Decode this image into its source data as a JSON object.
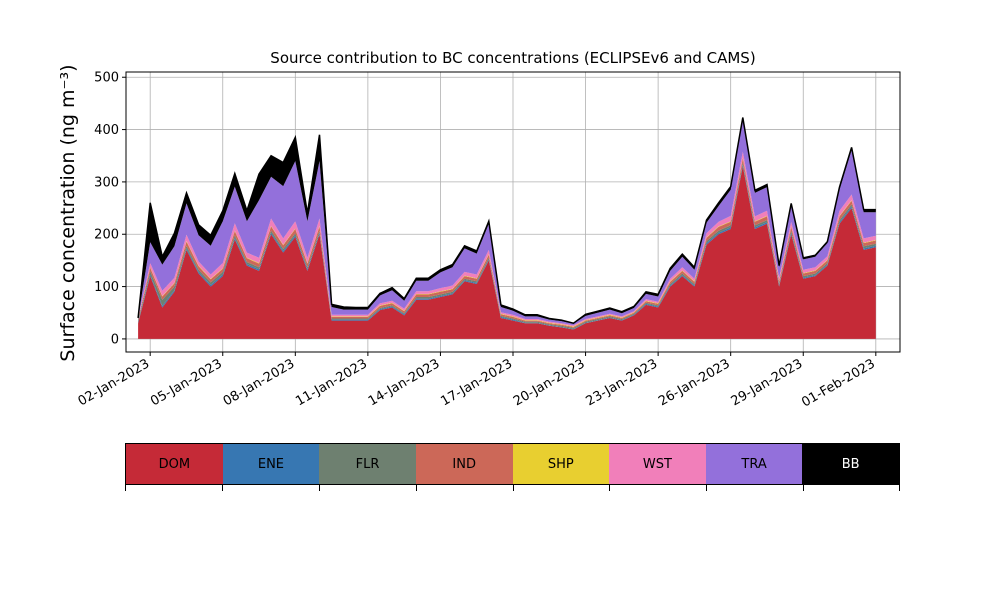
{
  "chart_data": {
    "type": "area",
    "stacked": true,
    "title": "Source contribution to BC concentrations (ECLIPSEv6 and CAMS)",
    "ylabel": "Surface concentration (ng m⁻³)",
    "xlabel": "",
    "ylim": [
      -25,
      510
    ],
    "yticks": [
      0,
      100,
      200,
      300,
      400,
      500
    ],
    "xlim": [
      "2023-01-01",
      "2023-02-02"
    ],
    "xticks": [
      "02-Jan-2023",
      "05-Jan-2023",
      "08-Jan-2023",
      "11-Jan-2023",
      "14-Jan-2023",
      "17-Jan-2023",
      "20-Jan-2023",
      "23-Jan-2023",
      "26-Jan-2023",
      "29-Jan-2023",
      "01-Feb-2023"
    ],
    "grid": true,
    "colors": {
      "DOM": "#c52a37",
      "ENE": "#3777b2",
      "FLR": "#6e8070",
      "IND": "#cc6858",
      "SHP": "#e8cf30",
      "WST": "#f17fba",
      "TRA": "#9370db",
      "BB": "#000000"
    },
    "x": [
      "2023-01-01T12",
      "2023-01-02T00",
      "2023-01-02T12",
      "2023-01-03T00",
      "2023-01-03T12",
      "2023-01-04T00",
      "2023-01-04T12",
      "2023-01-05T00",
      "2023-01-05T12",
      "2023-01-06T00",
      "2023-01-06T12",
      "2023-01-07T00",
      "2023-01-07T12",
      "2023-01-08T00",
      "2023-01-08T12",
      "2023-01-09T00",
      "2023-01-09T12",
      "2023-01-10T00",
      "2023-01-10T12",
      "2023-01-11T00",
      "2023-01-11T12",
      "2023-01-12T00",
      "2023-01-12T12",
      "2023-01-13T00",
      "2023-01-13T12",
      "2023-01-14T00",
      "2023-01-14T12",
      "2023-01-15T00",
      "2023-01-15T12",
      "2023-01-16T00",
      "2023-01-16T12",
      "2023-01-17T00",
      "2023-01-17T12",
      "2023-01-18T00",
      "2023-01-18T12",
      "2023-01-19T00",
      "2023-01-19T12",
      "2023-01-20T00",
      "2023-01-20T12",
      "2023-01-21T00",
      "2023-01-21T12",
      "2023-01-22T00",
      "2023-01-22T12",
      "2023-01-23T00",
      "2023-01-23T12",
      "2023-01-24T00",
      "2023-01-24T12",
      "2023-01-25T00",
      "2023-01-25T12",
      "2023-01-26T00",
      "2023-01-26T12",
      "2023-01-27T00",
      "2023-01-27T12",
      "2023-01-28T00",
      "2023-01-28T12",
      "2023-01-29T00",
      "2023-01-29T12",
      "2023-01-30T00",
      "2023-01-30T12",
      "2023-01-31T00",
      "2023-01-31T12",
      "2023-02-01T00"
    ],
    "series": [
      {
        "name": "DOM",
        "values": [
          30,
          120,
          60,
          90,
          170,
          125,
          100,
          120,
          190,
          140,
          130,
          200,
          165,
          195,
          130,
          200,
          35,
          35,
          35,
          35,
          55,
          60,
          45,
          75,
          75,
          80,
          85,
          110,
          105,
          150,
          40,
          35,
          30,
          30,
          25,
          22,
          18,
          30,
          35,
          40,
          35,
          45,
          65,
          60,
          100,
          120,
          100,
          180,
          200,
          210,
          330,
          210,
          220,
          100,
          200,
          115,
          120,
          140,
          220,
          250,
          170,
          175
        ]
      },
      {
        "name": "ENE",
        "values": [
          2,
          3,
          3,
          3,
          3,
          3,
          3,
          3,
          3,
          3,
          3,
          3,
          3,
          3,
          3,
          3,
          2,
          2,
          2,
          2,
          2,
          2,
          2,
          2,
          2,
          2,
          2,
          2,
          2,
          2,
          2,
          2,
          1,
          1,
          1,
          1,
          1,
          1,
          1,
          1,
          1,
          1,
          2,
          2,
          2,
          2,
          2,
          3,
          3,
          3,
          3,
          3,
          3,
          2,
          3,
          2,
          2,
          2,
          3,
          3,
          3,
          3
        ]
      },
      {
        "name": "FLR",
        "values": [
          3,
          6,
          12,
          7,
          5,
          4,
          5,
          5,
          5,
          4,
          4,
          4,
          4,
          4,
          4,
          4,
          2,
          2,
          2,
          2,
          2,
          2,
          2,
          3,
          3,
          3,
          3,
          3,
          3,
          3,
          2,
          2,
          2,
          2,
          2,
          2,
          2,
          2,
          2,
          2,
          2,
          2,
          2,
          2,
          3,
          3,
          3,
          4,
          4,
          4,
          4,
          4,
          4,
          3,
          4,
          3,
          3,
          3,
          4,
          4,
          4,
          4
        ]
      },
      {
        "name": "IND",
        "values": [
          3,
          7,
          6,
          6,
          8,
          7,
          6,
          6,
          8,
          7,
          7,
          8,
          7,
          8,
          7,
          8,
          3,
          3,
          3,
          3,
          4,
          4,
          4,
          5,
          5,
          5,
          5,
          5,
          5,
          6,
          3,
          3,
          2,
          2,
          2,
          2,
          2,
          2,
          2,
          2,
          2,
          2,
          3,
          3,
          4,
          5,
          4,
          6,
          7,
          7,
          8,
          7,
          7,
          5,
          7,
          5,
          5,
          5,
          7,
          7,
          6,
          6
        ]
      },
      {
        "name": "SHP",
        "values": [
          0,
          1,
          1,
          1,
          1,
          1,
          1,
          1,
          1,
          1,
          1,
          1,
          1,
          1,
          1,
          1,
          1,
          1,
          1,
          1,
          1,
          1,
          1,
          1,
          1,
          1,
          1,
          1,
          1,
          1,
          1,
          1,
          1,
          1,
          1,
          1,
          1,
          1,
          1,
          1,
          1,
          1,
          1,
          1,
          1,
          1,
          1,
          1,
          1,
          1,
          1,
          1,
          1,
          1,
          1,
          1,
          1,
          1,
          1,
          1,
          1,
          1
        ]
      },
      {
        "name": "WST",
        "values": [
          2,
          8,
          10,
          10,
          12,
          8,
          8,
          10,
          14,
          10,
          10,
          14,
          12,
          14,
          10,
          14,
          3,
          3,
          3,
          3,
          4,
          4,
          4,
          5,
          5,
          6,
          6,
          7,
          7,
          8,
          3,
          3,
          2,
          2,
          2,
          2,
          2,
          2,
          2,
          2,
          2,
          2,
          3,
          3,
          5,
          6,
          5,
          8,
          9,
          10,
          12,
          9,
          10,
          6,
          9,
          6,
          6,
          7,
          10,
          11,
          8,
          8
        ]
      },
      {
        "name": "TRA",
        "values": [
          0,
          40,
          50,
          60,
          60,
          50,
          55,
          80,
          70,
          60,
          110,
          80,
          100,
          115,
          70,
          110,
          15,
          10,
          10,
          10,
          15,
          20,
          15,
          20,
          20,
          30,
          35,
          45,
          40,
          50,
          10,
          8,
          5,
          5,
          4,
          4,
          3,
          6,
          7,
          8,
          6,
          6,
          10,
          10,
          15,
          20,
          17,
          20,
          30,
          50,
          60,
          45,
          45,
          20,
          30,
          20,
          20,
          25,
          40,
          85,
          50,
          45
        ]
      },
      {
        "name": "BB",
        "values": [
          0,
          75,
          15,
          25,
          20,
          20,
          20,
          20,
          25,
          20,
          50,
          40,
          45,
          45,
          15,
          50,
          5,
          5,
          4,
          4,
          4,
          5,
          4,
          5,
          5,
          5,
          5,
          5,
          5,
          5,
          4,
          3,
          3,
          3,
          2,
          2,
          1,
          3,
          3,
          3,
          3,
          3,
          4,
          4,
          5,
          5,
          5,
          5,
          6,
          6,
          5,
          5,
          5,
          3,
          5,
          3,
          3,
          3,
          5,
          5,
          5,
          5
        ]
      }
    ]
  },
  "legend": {
    "entries": [
      {
        "label": "DOM",
        "color": "#c52a37",
        "text_color": "#000000"
      },
      {
        "label": "ENE",
        "color": "#3777b2",
        "text_color": "#000000"
      },
      {
        "label": "FLR",
        "color": "#6e8070",
        "text_color": "#000000"
      },
      {
        "label": "IND",
        "color": "#cc6858",
        "text_color": "#000000"
      },
      {
        "label": "SHP",
        "color": "#e8cf30",
        "text_color": "#000000"
      },
      {
        "label": "WST",
        "color": "#f17fba",
        "text_color": "#000000"
      },
      {
        "label": "TRA",
        "color": "#9370db",
        "text_color": "#000000"
      },
      {
        "label": "BB",
        "color": "#000000",
        "text_color": "#ffffff"
      }
    ]
  }
}
